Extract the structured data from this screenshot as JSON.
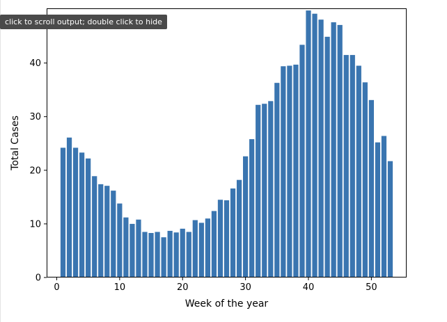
{
  "output_tooltip": "click to scroll output; double click to hide",
  "chart_data": {
    "type": "bar",
    "xlabel": "Week of the year",
    "ylabel": "Total Cases",
    "xlim": [
      -1.6,
      55.6
    ],
    "ylim": [
      0,
      50.2
    ],
    "xticks": [
      0,
      10,
      20,
      30,
      40,
      50
    ],
    "yticks": [
      0,
      10,
      20,
      30,
      40
    ],
    "grid": false,
    "bar_color": "#3a75b0",
    "x": [
      1,
      2,
      3,
      4,
      5,
      6,
      7,
      8,
      9,
      10,
      11,
      12,
      13,
      14,
      15,
      16,
      17,
      18,
      19,
      20,
      21,
      22,
      23,
      24,
      25,
      26,
      27,
      28,
      29,
      30,
      31,
      32,
      33,
      34,
      35,
      36,
      37,
      38,
      39,
      40,
      41,
      42,
      43,
      44,
      45,
      46,
      47,
      48,
      49,
      50,
      51,
      52,
      53
    ],
    "values": [
      24.2,
      26.1,
      24.2,
      23.3,
      22.2,
      18.9,
      17.4,
      17.1,
      16.2,
      13.8,
      11.2,
      10.0,
      10.8,
      8.5,
      8.3,
      8.5,
      7.5,
      8.7,
      8.4,
      9.1,
      8.5,
      10.7,
      10.2,
      11.0,
      12.4,
      14.5,
      14.4,
      16.6,
      18.2,
      22.6,
      25.8,
      32.2,
      32.4,
      32.9,
      36.3,
      39.4,
      39.5,
      39.7,
      43.4,
      49.8,
      49.2,
      48.1,
      44.9,
      47.6,
      47.1,
      41.5,
      41.5,
      39.5,
      36.4,
      33.1,
      25.2,
      26.4,
      21.7
    ]
  }
}
